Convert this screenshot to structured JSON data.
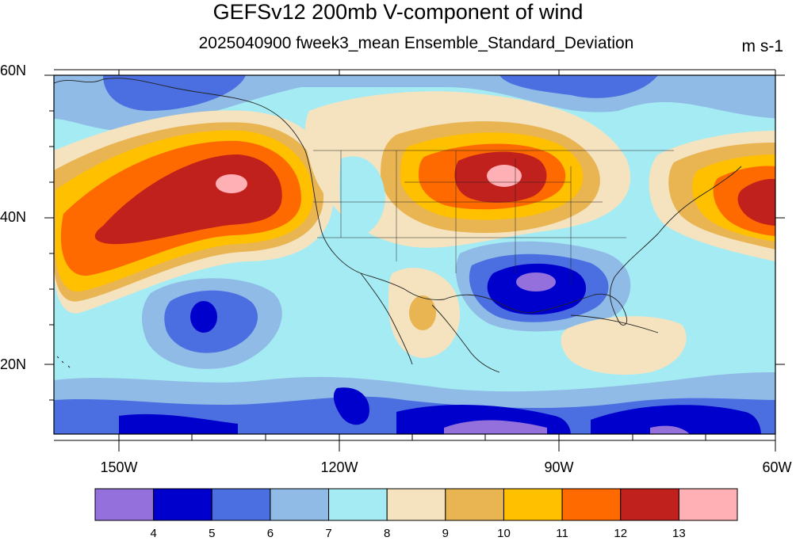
{
  "header": {
    "title": "GEFSv12 200mb V-component of wind",
    "subtitle": "2025040900 fweek3_mean Ensemble_Standard_Deviation",
    "units": "m s-1"
  },
  "axes": {
    "lat_labels": [
      "60N",
      "40N",
      "20N"
    ],
    "lon_labels": [
      "150W",
      "120W",
      "90W",
      "60W"
    ]
  },
  "colorbar": {
    "labels": [
      "4",
      "5",
      "6",
      "7",
      "8",
      "9",
      "10",
      "11",
      "12",
      "13"
    ],
    "colors": [
      "#9370db",
      "#0000cd",
      "#4b6fe0",
      "#8fbbe6",
      "#a5ebf3",
      "#f5e3c0",
      "#e8b552",
      "#ffc000",
      "#ff6a00",
      "#c0211c",
      "#ffb0b4"
    ]
  },
  "map": {
    "projection": "cylindrical-equidistant",
    "lon_range": [
      -160,
      -60
    ],
    "lat_range": [
      10,
      60
    ],
    "background_color": "#a5ebf3"
  }
}
